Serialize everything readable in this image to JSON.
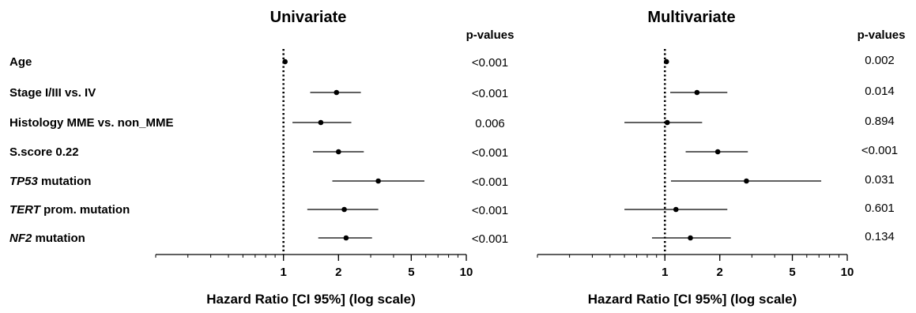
{
  "chart_data": [
    {
      "type": "forest",
      "title": "Univariate",
      "xlabel": "Hazard Ratio [CI 95%] (log scale)",
      "xscale": "log",
      "xlim": [
        0.2,
        10
      ],
      "xticks": [
        1,
        2,
        5,
        10
      ],
      "reference_line": 1,
      "pvalue_header": "p-values",
      "rows": [
        {
          "label": "Age",
          "hr": 1.02,
          "ci": [
            1.01,
            1.03
          ],
          "p": "<0.001"
        },
        {
          "label": "Stage I/III vs. IV",
          "hr": 1.95,
          "ci": [
            1.4,
            2.65
          ],
          "p": "<0.001"
        },
        {
          "label": "Histology MME vs. non_MME",
          "hr": 1.6,
          "ci": [
            1.12,
            2.35
          ],
          "p": "0.006"
        },
        {
          "label": "S.score 0.22",
          "hr": 2.0,
          "ci": [
            1.45,
            2.75
          ],
          "p": "<0.001"
        },
        {
          "label": "TP53 mutation",
          "hr": 3.3,
          "ci": [
            1.85,
            5.9
          ],
          "p": "<0.001"
        },
        {
          "label": "TERT prom. mutation",
          "hr": 2.15,
          "ci": [
            1.35,
            3.3
          ],
          "p": "<0.001"
        },
        {
          "label": "NF2 mutation",
          "hr": 2.2,
          "ci": [
            1.55,
            3.05
          ],
          "p": "<0.001"
        }
      ]
    },
    {
      "type": "forest",
      "title": "Multivariate",
      "xlabel": "Hazard Ratio [CI 95%] (log scale)",
      "xscale": "log",
      "xlim": [
        0.2,
        10
      ],
      "xticks": [
        1,
        2,
        5,
        10
      ],
      "reference_line": 1,
      "pvalue_header": "p-values",
      "rows": [
        {
          "label": "Age",
          "hr": 1.02,
          "ci": [
            1.01,
            1.03
          ],
          "p": "0.002"
        },
        {
          "label": "Stage I/III vs. IV",
          "hr": 1.5,
          "ci": [
            1.07,
            2.2
          ],
          "p": "0.014"
        },
        {
          "label": "Histology MME vs. non_MME",
          "hr": 1.03,
          "ci": [
            0.6,
            1.6
          ],
          "p": "0.894"
        },
        {
          "label": "S.score 0.22",
          "hr": 1.95,
          "ci": [
            1.3,
            2.85
          ],
          "p": "<0.001"
        },
        {
          "label": "TP53 mutation",
          "hr": 2.8,
          "ci": [
            1.08,
            7.2
          ],
          "p": "0.031"
        },
        {
          "label": "TERT prom. mutation",
          "hr": 1.15,
          "ci": [
            0.6,
            2.2
          ],
          "p": "0.601"
        },
        {
          "label": "NF2 mutation",
          "hr": 1.38,
          "ci": [
            0.85,
            2.3
          ],
          "p": "0.134"
        }
      ]
    }
  ]
}
